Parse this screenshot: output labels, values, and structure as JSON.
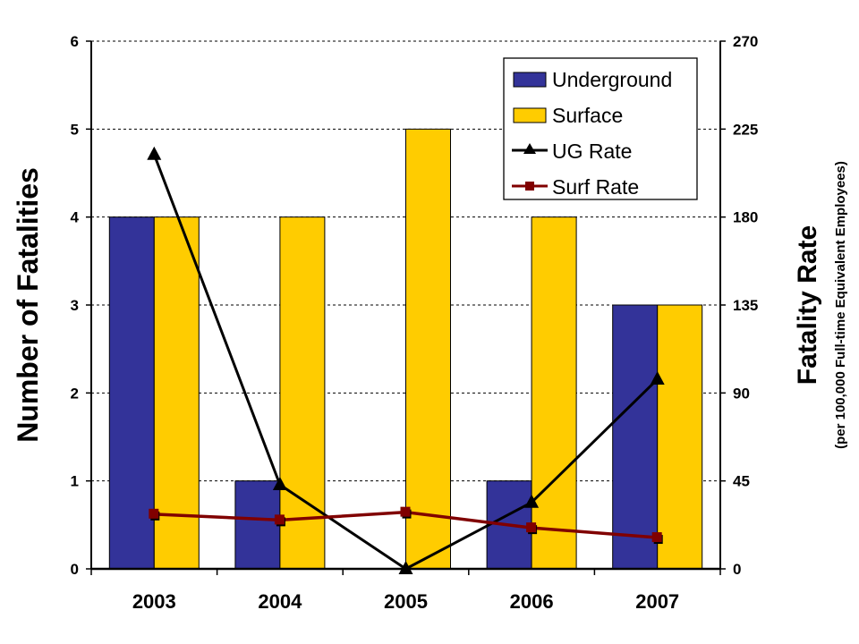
{
  "chart_data": {
    "type": "bar+line",
    "categories": [
      "2003",
      "2004",
      "2005",
      "2006",
      "2007"
    ],
    "series": [
      {
        "name": "Underground",
        "kind": "bar",
        "axis": "left",
        "color": "#333399",
        "values": [
          4,
          1,
          0,
          1,
          3
        ]
      },
      {
        "name": "Surface",
        "kind": "bar",
        "axis": "left",
        "color": "#FFCC00",
        "values": [
          4,
          4,
          5,
          4,
          3
        ]
      },
      {
        "name": "UG Rate",
        "kind": "line",
        "axis": "right",
        "marker": "triangle",
        "color": "#000000",
        "values": [
          212,
          43,
          0,
          34,
          97
        ]
      },
      {
        "name": "Surf Rate",
        "kind": "line",
        "axis": "right",
        "marker": "square",
        "color": "#800000",
        "values": [
          28,
          25,
          29,
          21,
          16
        ]
      }
    ],
    "ylabel": "Number of Fatalities",
    "ylim": [
      0,
      6
    ],
    "yticks": [
      "0",
      "1",
      "2",
      "3",
      "4",
      "5",
      "6"
    ],
    "y2label": "Fatality Rate",
    "y2sublabel": "(per 100,000 Full-time Equivalent Employees)",
    "y2lim": [
      0,
      270
    ],
    "y2ticks": [
      "0",
      "45",
      "90",
      "135",
      "180",
      "225",
      "270"
    ],
    "grid": "horizontal dashed",
    "legend_position": "top-right"
  }
}
